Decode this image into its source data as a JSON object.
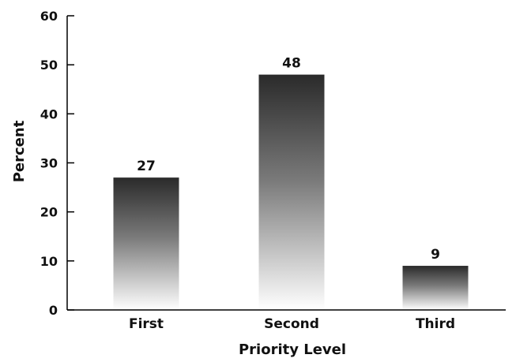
{
  "chart_data": {
    "type": "bar",
    "categories": [
      "First",
      "Second",
      "Third"
    ],
    "values": [
      27,
      48,
      9
    ],
    "data_labels": [
      "27",
      "48",
      "9"
    ],
    "title": "",
    "xlabel": "Priority Level",
    "ylabel": "Percent",
    "ylim": [
      0,
      60
    ],
    "yticks": [
      "0",
      "10",
      "20",
      "30",
      "40",
      "50",
      "60"
    ],
    "grid": false,
    "legend": "none",
    "bar_gradient": {
      "top": "#2a2a2a",
      "bottom": "#ffffff"
    }
  }
}
